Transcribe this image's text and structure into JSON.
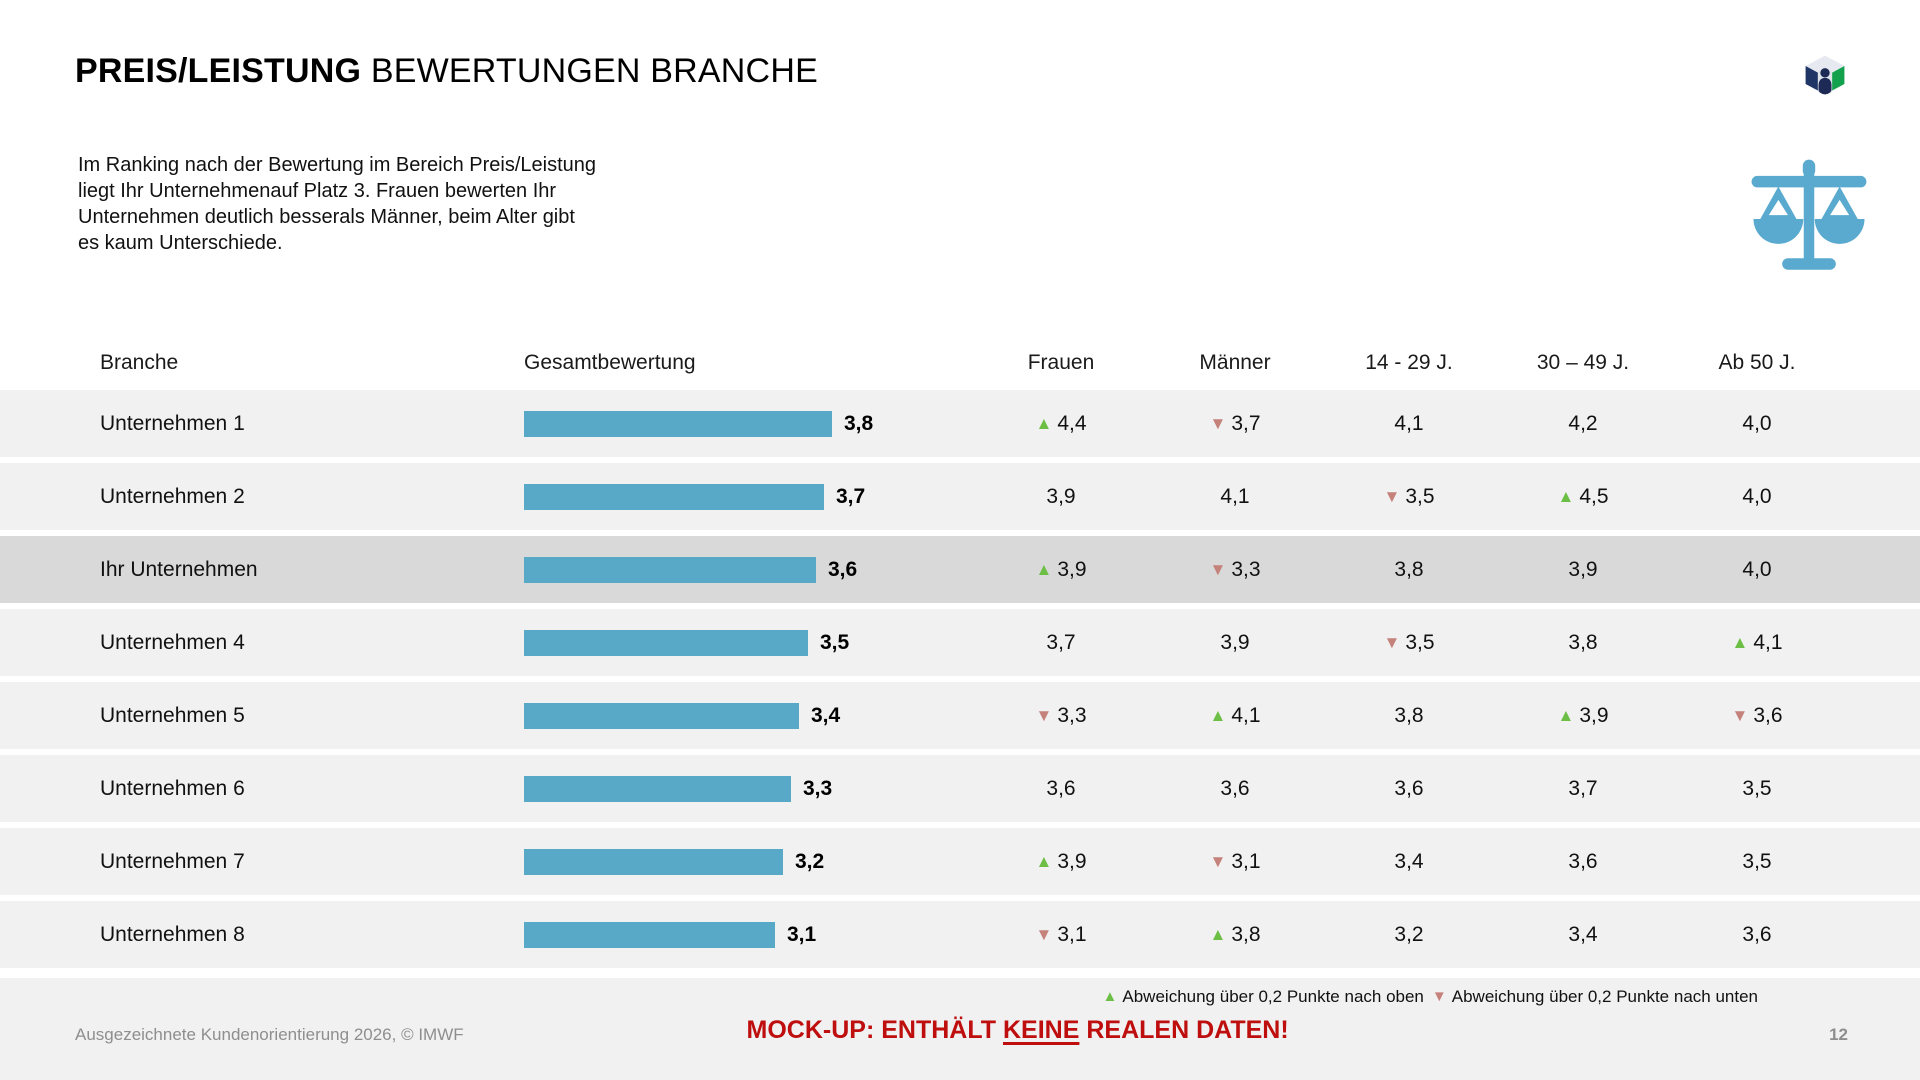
{
  "slide": {
    "title_bold": "PREIS/LEISTUNG",
    "title_regular": " BEWERTUNGEN BRANCHE",
    "intro": "Im Ranking nach der Bewertung im Bereich Preis/Leistung\n liegt Ihr Unternehmenauf Platz 3. Frauen bewerten Ihr\nUnternehmen deutlich besserals Männer, beim Alter gibt\nes kaum Unterschiede.",
    "footer_left": "Ausgezeichnete Kundenorientierung 2026, © IMWF",
    "mockup_prefix": "MOCK-UP: ENTHÄLT ",
    "mockup_underline": "KEINE",
    "mockup_suffix": " REALEN DATEN!",
    "page_number": "12"
  },
  "icons": {
    "logo": "imwf-cube-logo",
    "scales": "scales-of-justice-icon",
    "arrow_up": "▲",
    "arrow_down": "▼"
  },
  "colors": {
    "bar_blue": "#57A9C7",
    "scales_blue": "#59AACE",
    "arrow_up_green": "#6CBE44",
    "arrow_down_red": "#C5827A",
    "row_stripe": "#F1F1F2",
    "highlight_row": "#D9D9D9",
    "mockup_red": "#BE0E0E",
    "footer_gray": "#8e8e8e",
    "logo_navy": "#1E3566",
    "logo_green": "#12A14D"
  },
  "chart_data": {
    "type": "table",
    "subtype": "table-with-horizontal-bars",
    "title": "PREIS/LEISTUNG BEWERTUNGEN BRANCHE",
    "columns": [
      "Branche",
      "Gesamtbewertung",
      "Frauen",
      "Männer",
      "14 - 29 J.",
      "30 – 49 J.",
      "Ab 50 J."
    ],
    "bar_axis_max": 5,
    "rows": [
      {
        "label": "Unternehmen 1",
        "gesamt": "3,8",
        "gesamt_value": 3.8,
        "highlight": false,
        "values": [
          {
            "text": "4,4",
            "arrow": "up"
          },
          {
            "text": "3,7",
            "arrow": "down"
          },
          {
            "text": "4,1",
            "arrow": null
          },
          {
            "text": "4,2",
            "arrow": null
          },
          {
            "text": "4,0",
            "arrow": null
          }
        ]
      },
      {
        "label": "Unternehmen 2",
        "gesamt": "3,7",
        "gesamt_value": 3.7,
        "highlight": false,
        "values": [
          {
            "text": "3,9",
            "arrow": null
          },
          {
            "text": "4,1",
            "arrow": null
          },
          {
            "text": "3,5",
            "arrow": "down"
          },
          {
            "text": "4,5",
            "arrow": "up"
          },
          {
            "text": "4,0",
            "arrow": null
          }
        ]
      },
      {
        "label": "Ihr Unternehmen",
        "gesamt": "3,6",
        "gesamt_value": 3.6,
        "highlight": true,
        "values": [
          {
            "text": "3,9",
            "arrow": "up"
          },
          {
            "text": "3,3",
            "arrow": "down"
          },
          {
            "text": "3,8",
            "arrow": null
          },
          {
            "text": "3,9",
            "arrow": null
          },
          {
            "text": "4,0",
            "arrow": null
          }
        ]
      },
      {
        "label": "Unternehmen 4",
        "gesamt": "3,5",
        "gesamt_value": 3.5,
        "highlight": false,
        "values": [
          {
            "text": "3,7",
            "arrow": null
          },
          {
            "text": "3,9",
            "arrow": null
          },
          {
            "text": "3,5",
            "arrow": "down"
          },
          {
            "text": "3,8",
            "arrow": null
          },
          {
            "text": "4,1",
            "arrow": "up"
          }
        ]
      },
      {
        "label": "Unternehmen 5",
        "gesamt": "3,4",
        "gesamt_value": 3.4,
        "highlight": false,
        "values": [
          {
            "text": "3,3",
            "arrow": "down"
          },
          {
            "text": "4,1",
            "arrow": "up"
          },
          {
            "text": "3,8",
            "arrow": null
          },
          {
            "text": "3,9",
            "arrow": "up"
          },
          {
            "text": "3,6",
            "arrow": "down"
          }
        ]
      },
      {
        "label": "Unternehmen 6",
        "gesamt": "3,3",
        "gesamt_value": 3.3,
        "highlight": false,
        "values": [
          {
            "text": "3,6",
            "arrow": null
          },
          {
            "text": "3,6",
            "arrow": null
          },
          {
            "text": "3,6",
            "arrow": null
          },
          {
            "text": "3,7",
            "arrow": null
          },
          {
            "text": "3,5",
            "arrow": null
          }
        ]
      },
      {
        "label": "Unternehmen 7",
        "gesamt": "3,2",
        "gesamt_value": 3.2,
        "highlight": false,
        "values": [
          {
            "text": "3,9",
            "arrow": "up"
          },
          {
            "text": "3,1",
            "arrow": "down"
          },
          {
            "text": "3,4",
            "arrow": null
          },
          {
            "text": "3,6",
            "arrow": null
          },
          {
            "text": "3,5",
            "arrow": null
          }
        ]
      },
      {
        "label": "Unternehmen 8",
        "gesamt": "3,1",
        "gesamt_value": 3.1,
        "highlight": false,
        "values": [
          {
            "text": "3,1",
            "arrow": "down"
          },
          {
            "text": "3,8",
            "arrow": "up"
          },
          {
            "text": "3,2",
            "arrow": null
          },
          {
            "text": "3,4",
            "arrow": null
          },
          {
            "text": "3,6",
            "arrow": null
          }
        ]
      }
    ],
    "legend": [
      {
        "symbol": "up",
        "text": "Abweichung über 0,2 Punkte nach oben"
      },
      {
        "symbol": "down",
        "text": "Abweichung über 0,2 Punkte nach unten"
      }
    ],
    "legend_position": "bottom-right",
    "bar_color": "#57A9C7"
  }
}
